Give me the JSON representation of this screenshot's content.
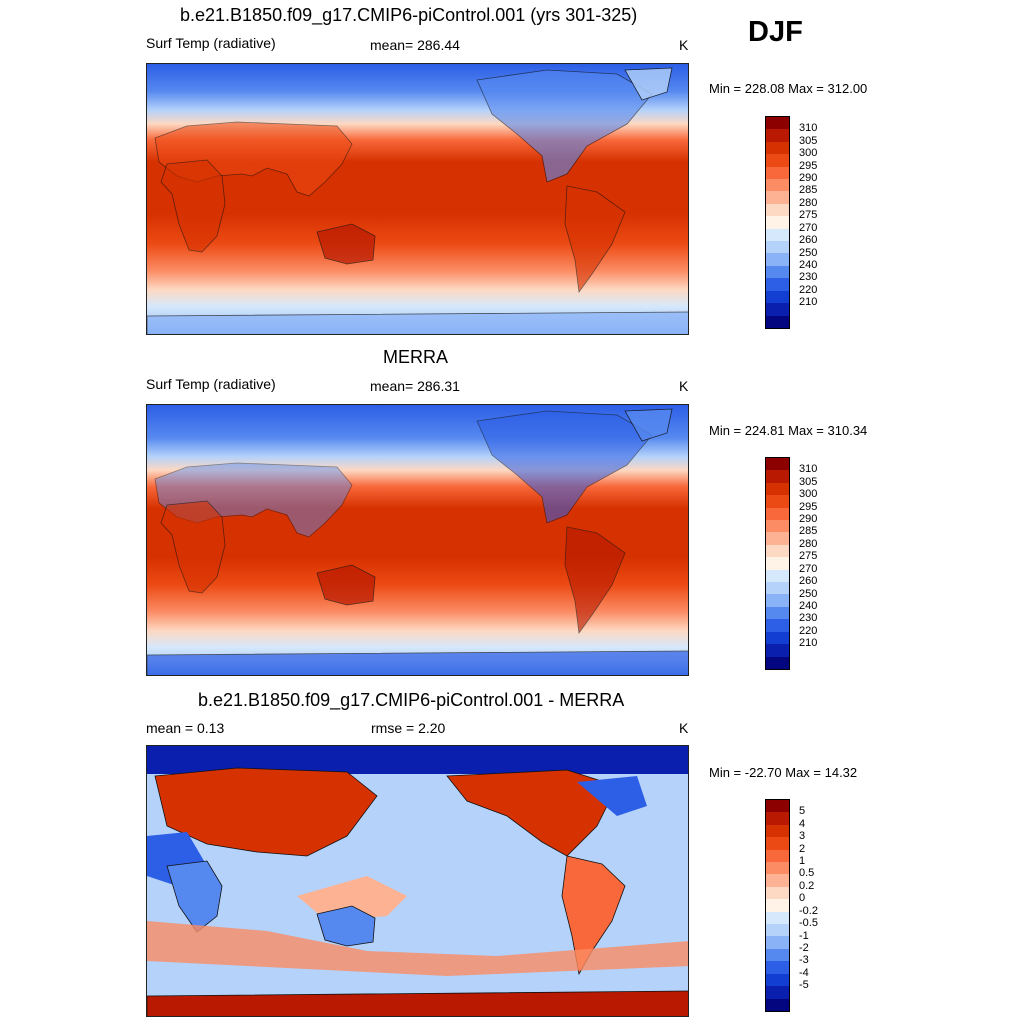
{
  "season": "DJF",
  "panels": [
    {
      "title": "b.e21.B1850.f09_g17.CMIP6-piControl.001 (yrs 301-325)",
      "left_label": "Surf Temp (radiative)",
      "center_label": "mean= 286.44",
      "unit": "K",
      "minmax": "Min = 228.08 Max = 312.00",
      "colorbar_labels": [
        "310",
        "305",
        "300",
        "295",
        "290",
        "285",
        "280",
        "275",
        "270",
        "260",
        "250",
        "240",
        "230",
        "220",
        "210"
      ]
    },
    {
      "title": "MERRA",
      "left_label": "Surf Temp (radiative)",
      "center_label": "mean= 286.31",
      "unit": "K",
      "minmax": "Min = 224.81 Max = 310.34",
      "colorbar_labels": [
        "310",
        "305",
        "300",
        "295",
        "290",
        "285",
        "280",
        "275",
        "270",
        "260",
        "250",
        "240",
        "230",
        "220",
        "210"
      ]
    },
    {
      "title": "b.e21.B1850.f09_g17.CMIP6-piControl.001 - MERRA",
      "left_label": "mean =   0.13",
      "center_label": "rmse =   2.20",
      "unit": "K",
      "minmax": "Min = -22.70 Max =  14.32",
      "colorbar_labels": [
        "5",
        "4",
        "3",
        "2",
        "1",
        "0.5",
        "0.2",
        "0",
        "-0.2",
        "-0.5",
        "-1",
        "-2",
        "-3",
        "-4",
        "-5"
      ]
    }
  ],
  "colors": {
    "temp_scale": [
      "#8c0000",
      "#b81900",
      "#d63100",
      "#ec4a14",
      "#f8683a",
      "#fb8c64",
      "#fdb393",
      "#fdd8c2",
      "#fff2e6",
      "#d6e8fb",
      "#b4d2fa",
      "#89b2f7",
      "#5689f0",
      "#2c5ee6",
      "#123ed2",
      "#0a1fae",
      "#03067f"
    ],
    "diff_scale": [
      "#8c0000",
      "#b81900",
      "#d63100",
      "#ec4a14",
      "#f8683a",
      "#fb8c64",
      "#fdb393",
      "#fdd8c2",
      "#fff2e6",
      "#d6e8fb",
      "#b4d2fa",
      "#89b2f7",
      "#5689f0",
      "#2c5ee6",
      "#123ed2",
      "#0a1fae",
      "#03067f"
    ]
  }
}
